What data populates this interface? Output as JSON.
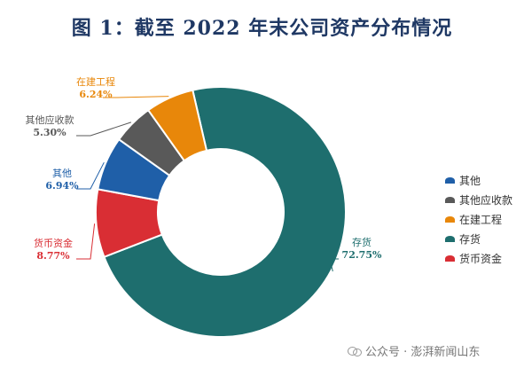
{
  "title": "图 1：截至 2022 年末公司资产分布情况",
  "chart_data": {
    "type": "pie",
    "donut": true,
    "legend_position": "right",
    "slices": [
      {
        "name": "存货",
        "value": 72.75,
        "label_value": "72.75%",
        "color": "#1e6e6e"
      },
      {
        "name": "货币资金",
        "value": 8.77,
        "label_value": "8.77%",
        "color": "#d92e34"
      },
      {
        "name": "其他",
        "value": 6.94,
        "label_value": "6.94%",
        "color": "#1f5fa8"
      },
      {
        "name": "其他应收款",
        "value": 5.3,
        "label_value": "5.30%",
        "color": "#595959"
      },
      {
        "name": "在建工程",
        "value": 6.24,
        "label_value": "6.24%",
        "color": "#e8870a"
      }
    ],
    "legend": [
      {
        "name": "其他",
        "color": "#1f5fa8"
      },
      {
        "name": "其他应收款",
        "color": "#595959"
      },
      {
        "name": "在建工程",
        "color": "#e8870a"
      },
      {
        "name": "存货",
        "color": "#1e6e6e"
      },
      {
        "name": "货币资金",
        "color": "#d92e34"
      }
    ]
  },
  "watermark": {
    "text": "公众号 · 澎湃新闻山东",
    "icon": "wechat-icon"
  }
}
